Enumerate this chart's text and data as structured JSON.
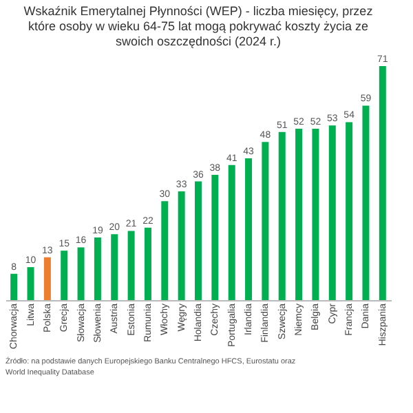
{
  "chart_data": {
    "type": "bar",
    "title": "Wskaźnik Emerytalnej Płynności (WEP) - liczba miesięcy, przez które osoby w wieku 64-75 lat mogą pokrywać koszty życia ze swoich oszczędności (2024 r.)",
    "categories": [
      "Chorwacja",
      "Litwa",
      "Polska",
      "Grecja",
      "Słowacja",
      "Słowenia",
      "Austria",
      "Estonia",
      "Rumunia",
      "Włochy",
      "Węgry",
      "Holandia",
      "Czechy",
      "Portugalia",
      "Irlandia",
      "Finlandia",
      "Szwecja",
      "Niemcy",
      "Belgia",
      "Cypr",
      "Francja",
      "Dania",
      "Hiszpania"
    ],
    "values": [
      8,
      10,
      13,
      15,
      16,
      19,
      20,
      21,
      22,
      30,
      33,
      36,
      38,
      41,
      43,
      48,
      51,
      52,
      52,
      53,
      54,
      59,
      71
    ],
    "colors": [
      "#00b050",
      "#00b050",
      "#ed7d31",
      "#00b050",
      "#00b050",
      "#00b050",
      "#00b050",
      "#00b050",
      "#00b050",
      "#00b050",
      "#00b050",
      "#00b050",
      "#00b050",
      "#00b050",
      "#00b050",
      "#00b050",
      "#00b050",
      "#00b050",
      "#00b050",
      "#00b050",
      "#00b050",
      "#00b050",
      "#00b050"
    ],
    "data_labels": true,
    "grid": false,
    "annotations": [
      "Źródło: na podstawie danych Europejskiego Banku Centralnego HFCS, Eurostatu oraz World Inequality Database"
    ]
  }
}
